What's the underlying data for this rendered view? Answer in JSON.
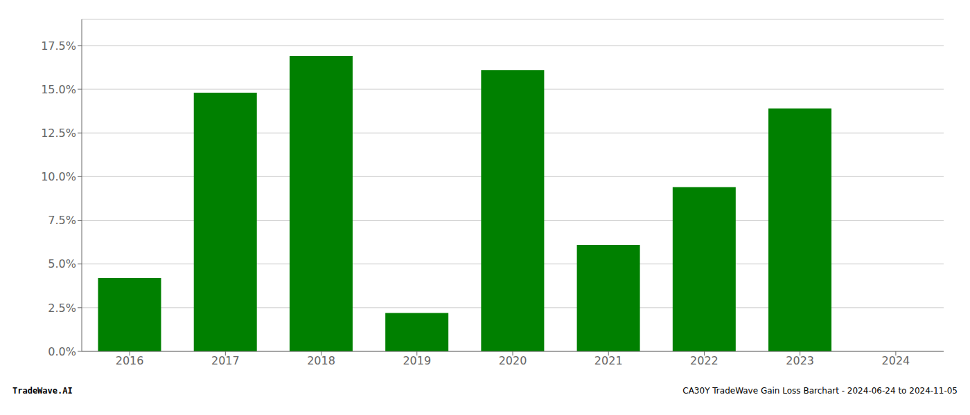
{
  "chart_data": {
    "type": "bar",
    "categories": [
      "2016",
      "2017",
      "2018",
      "2019",
      "2020",
      "2021",
      "2022",
      "2023",
      "2024"
    ],
    "values": [
      0.042,
      0.148,
      0.169,
      0.022,
      0.161,
      0.061,
      0.094,
      0.139,
      null
    ],
    "color": "#008000",
    "ylim": [
      0,
      0.19
    ],
    "yticks": [
      {
        "value": 0.0,
        "label": "0.0%"
      },
      {
        "value": 0.025,
        "label": "2.5%"
      },
      {
        "value": 0.05,
        "label": "5.0%"
      },
      {
        "value": 0.075,
        "label": "7.5%"
      },
      {
        "value": 0.1,
        "label": "10.0%"
      },
      {
        "value": 0.125,
        "label": "12.5%"
      },
      {
        "value": 0.15,
        "label": "15.0%"
      },
      {
        "value": 0.175,
        "label": "17.5%"
      }
    ],
    "grid": true,
    "annotations": [
      "TradeWave.AI",
      "CA30Y TradeWave Gain Loss Barchart - 2024-06-24 to 2024-11-05"
    ]
  }
}
